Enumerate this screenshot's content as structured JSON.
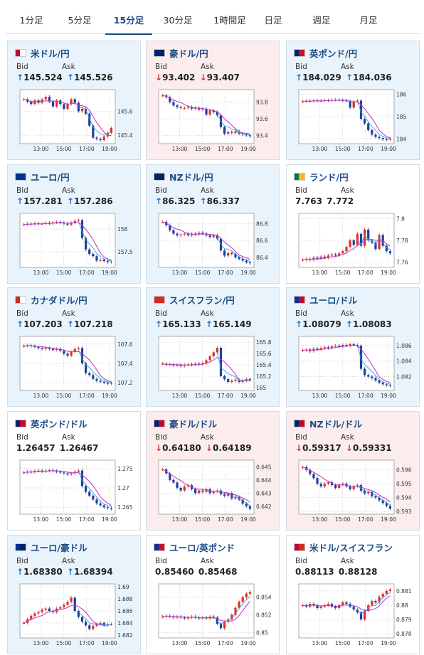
{
  "tabs": [
    {
      "label": "1分足"
    },
    {
      "label": "5分足"
    },
    {
      "label": "15分足",
      "active": true
    },
    {
      "label": "30分足"
    },
    {
      "label": "1時間足"
    },
    {
      "label": "日足"
    },
    {
      "label": "週足"
    },
    {
      "label": "月足"
    }
  ],
  "labels": {
    "bid": "Bid",
    "ask": "Ask"
  },
  "time_ticks": [
    "13:00",
    "15:00",
    "17:00",
    "19:00"
  ],
  "colors": {
    "accent": "#1b4b87",
    "up_arrow": "#2a6fb8",
    "down_arrow": "#d9302f",
    "up_bg": "#e9f3fb",
    "down_bg": "#fbeded",
    "bull_candle": "#d9302f",
    "bear_candle": "#1e3f9c",
    "ma_line": "#c040c8",
    "ma_line2": "#3aa0d8"
  },
  "cards": [
    {
      "name": "米ドル/円",
      "flag": "us-flag",
      "trend": "up",
      "bid": "145.524",
      "ask": "145.526",
      "arrow": "up-arrow",
      "y_ticks": [
        "145.6",
        "145.4"
      ],
      "ymin": 145.33,
      "ymax": 145.78,
      "tick_values": [
        145.6,
        145.4
      ],
      "closes": [
        145.7,
        145.68,
        145.66,
        145.69,
        145.67,
        145.7,
        145.72,
        145.68,
        145.64,
        145.69,
        145.66,
        145.62,
        145.66,
        145.7,
        145.67,
        145.6,
        145.62,
        145.58,
        145.48,
        145.38,
        145.37,
        145.36,
        145.39,
        145.42,
        145.46
      ]
    },
    {
      "name": "豪ドル/円",
      "flag": "au-flag",
      "trend": "down",
      "bid": "93.402",
      "ask": "93.407",
      "arrow": "down-arrow",
      "y_ticks": [
        "93.8",
        "93.6",
        "93.4"
      ],
      "ymin": 93.3,
      "ymax": 93.95,
      "tick_values": [
        93.8,
        93.6,
        93.4
      ],
      "closes": [
        93.88,
        93.86,
        93.8,
        93.76,
        93.74,
        93.73,
        93.73,
        93.74,
        93.72,
        93.73,
        93.71,
        93.72,
        93.65,
        93.7,
        93.68,
        93.64,
        93.5,
        93.42,
        93.44,
        93.43,
        93.45,
        93.42,
        93.41,
        93.4,
        93.39
      ]
    },
    {
      "name": "英ポンド/円",
      "flag": "gb-flag",
      "trend": "up",
      "bid": "184.029",
      "ask": "184.036",
      "arrow": "up-arrow",
      "y_ticks": [
        "186",
        "185",
        "184"
      ],
      "ymin": 183.8,
      "ymax": 186.2,
      "tick_values": [
        186,
        185,
        184
      ],
      "closes": [
        185.68,
        185.7,
        185.69,
        185.72,
        185.71,
        185.7,
        185.73,
        185.72,
        185.74,
        185.75,
        185.73,
        185.72,
        185.7,
        185.4,
        185.68,
        185.71,
        184.9,
        184.7,
        184.4,
        184.2,
        184.1,
        184.05,
        184.0,
        183.98,
        184.03
      ]
    },
    {
      "name": "ユーロ/円",
      "flag": "eu-flag",
      "trend": "up",
      "bid": "157.281",
      "ask": "157.286",
      "arrow": "up-arrow",
      "y_ticks": [
        "158",
        "157.5"
      ],
      "ymin": 157.15,
      "ymax": 158.35,
      "tick_values": [
        158,
        157.5
      ],
      "closes": [
        158.1,
        158.12,
        158.11,
        158.13,
        158.12,
        158.12,
        158.14,
        158.13,
        158.15,
        158.16,
        158.14,
        158.12,
        158.1,
        158.14,
        158.18,
        158.2,
        157.8,
        157.55,
        157.45,
        157.4,
        157.3,
        157.32,
        157.29,
        157.27,
        157.28
      ]
    },
    {
      "name": "NZドル/円",
      "flag": "nz-flag",
      "trend": "up",
      "bid": "86.325",
      "ask": "86.337",
      "arrow": "up-arrow",
      "y_ticks": [
        "86.8",
        "86.6",
        "86.4"
      ],
      "ymin": 86.28,
      "ymax": 86.92,
      "tick_values": [
        86.8,
        86.6,
        86.4
      ],
      "closes": [
        86.82,
        86.78,
        86.72,
        86.68,
        86.66,
        86.67,
        86.68,
        86.66,
        86.68,
        86.67,
        86.69,
        86.68,
        86.66,
        86.64,
        86.66,
        86.62,
        86.48,
        86.42,
        86.45,
        86.44,
        86.4,
        86.38,
        86.36,
        86.34,
        86.33
      ]
    },
    {
      "name": "ランド/円",
      "flag": "za-flag",
      "trend": "flat",
      "bid": "7.763",
      "ask": "7.772",
      "arrow": "",
      "y_ticks": [
        "7.8",
        "7.78",
        "7.76"
      ],
      "ymin": 7.755,
      "ymax": 7.805,
      "tick_values": [
        7.8,
        7.78,
        7.76
      ],
      "closes": [
        7.762,
        7.763,
        7.762,
        7.764,
        7.763,
        7.765,
        7.764,
        7.766,
        7.767,
        7.766,
        7.768,
        7.77,
        7.774,
        7.78,
        7.776,
        7.786,
        7.775,
        7.79,
        7.78,
        7.778,
        7.772,
        7.785,
        7.775,
        7.77,
        7.768
      ]
    },
    {
      "name": "カナダドル/円",
      "flag": "ca-flag",
      "trend": "up",
      "bid": "107.203",
      "ask": "107.218",
      "arrow": "up-arrow",
      "y_ticks": [
        "107.6",
        "107.4",
        "107.2"
      ],
      "ymin": 107.12,
      "ymax": 107.68,
      "tick_values": [
        107.6,
        107.4,
        107.2
      ],
      "closes": [
        107.58,
        107.59,
        107.58,
        107.57,
        107.56,
        107.55,
        107.56,
        107.55,
        107.54,
        107.55,
        107.53,
        107.5,
        107.48,
        107.52,
        107.55,
        107.56,
        107.4,
        107.3,
        107.28,
        107.24,
        107.22,
        107.21,
        107.2,
        107.19,
        107.2
      ]
    },
    {
      "name": "スイスフラン/円",
      "flag": "ch-flag",
      "trend": "up",
      "bid": "165.133",
      "ask": "165.149",
      "arrow": "up-arrow",
      "y_ticks": [
        "165.8",
        "165.6",
        "165.4",
        "165.2",
        "165"
      ],
      "ymin": 164.95,
      "ymax": 165.9,
      "tick_values": [
        165.8,
        165.6,
        165.4,
        165.2,
        165.0
      ],
      "closes": [
        165.42,
        165.4,
        165.41,
        165.39,
        165.4,
        165.38,
        165.4,
        165.41,
        165.4,
        165.42,
        165.41,
        165.43,
        165.48,
        165.55,
        165.62,
        165.7,
        165.2,
        165.15,
        165.1,
        165.12,
        165.14,
        165.1,
        165.12,
        165.15,
        165.13
      ]
    },
    {
      "name": "ユーロ/ドル",
      "flag": "euus-flag",
      "trend": "up",
      "bid": "1.08079",
      "ask": "1.08083",
      "arrow": "up-arrow",
      "y_ticks": [
        "1.086",
        "1.084",
        "1.082"
      ],
      "ymin": 1.0802,
      "ymax": 1.0872,
      "tick_values": [
        1.086,
        1.084,
        1.082
      ],
      "closes": [
        1.0854,
        1.0855,
        1.0853,
        1.0856,
        1.0855,
        1.0857,
        1.0858,
        1.0857,
        1.0859,
        1.086,
        1.0859,
        1.0861,
        1.086,
        1.0862,
        1.0861,
        1.086,
        1.083,
        1.0822,
        1.082,
        1.0818,
        1.0815,
        1.0812,
        1.081,
        1.0809,
        1.0808
      ]
    },
    {
      "name": "英ポンド/ドル",
      "flag": "gbus-flag",
      "trend": "flat",
      "bid": "1.26457",
      "ask": "1.26467",
      "arrow": "",
      "y_ticks": [
        "1.275",
        "1.27",
        "1.265"
      ],
      "ymin": 1.2632,
      "ymax": 1.2772,
      "tick_values": [
        1.275,
        1.27,
        1.265
      ],
      "closes": [
        1.274,
        1.2742,
        1.2741,
        1.2744,
        1.2745,
        1.2743,
        1.2745,
        1.2746,
        1.2744,
        1.2742,
        1.274,
        1.2738,
        1.2735,
        1.2738,
        1.2742,
        1.2745,
        1.2705,
        1.269,
        1.268,
        1.267,
        1.266,
        1.2655,
        1.265,
        1.2648,
        1.2646
      ]
    },
    {
      "name": "豪ドル/ドル",
      "flag": "auus-flag",
      "trend": "down",
      "bid": "0.64180",
      "ask": "0.64189",
      "arrow": "down-arrow",
      "y_ticks": [
        "0.645",
        "0.644",
        "0.643",
        "0.642"
      ],
      "ymin": 0.6414,
      "ymax": 0.6455,
      "tick_values": [
        0.645,
        0.644,
        0.643,
        0.642
      ],
      "closes": [
        0.6448,
        0.6445,
        0.644,
        0.6438,
        0.6434,
        0.6432,
        0.6435,
        0.6436,
        0.6433,
        0.643,
        0.6432,
        0.6431,
        0.6433,
        0.643,
        0.6431,
        0.6432,
        0.6429,
        0.6428,
        0.643,
        0.6426,
        0.6427,
        0.6425,
        0.6422,
        0.642,
        0.6418
      ]
    },
    {
      "name": "NZドル/ドル",
      "flag": "nzus-flag",
      "trend": "down",
      "bid": "0.59317",
      "ask": "0.59331",
      "arrow": "down-arrow",
      "y_ticks": [
        "0.596",
        "0.595",
        "0.594",
        "0.593"
      ],
      "ymin": 0.5928,
      "ymax": 0.5967,
      "tick_values": [
        0.596,
        0.595,
        0.594,
        0.593
      ],
      "closes": [
        0.5962,
        0.596,
        0.5957,
        0.5954,
        0.595,
        0.5948,
        0.595,
        0.5951,
        0.5949,
        0.5947,
        0.5949,
        0.595,
        0.5948,
        0.5946,
        0.5948,
        0.5949,
        0.5945,
        0.5943,
        0.5944,
        0.5941,
        0.594,
        0.5938,
        0.5936,
        0.5934,
        0.5932
      ]
    },
    {
      "name": "ユーロ/豪ドル",
      "flag": "euau-flag",
      "trend": "up",
      "bid": "1.68380",
      "ask": "1.68394",
      "arrow": "up-arrow",
      "y_ticks": [
        "1.69",
        "1.688",
        "1.686",
        "1.684",
        "1.682"
      ],
      "ymin": 1.6815,
      "ymax": 1.6905,
      "tick_values": [
        1.69,
        1.688,
        1.686,
        1.684,
        1.682
      ],
      "closes": [
        1.684,
        1.6846,
        1.6852,
        1.6856,
        1.6858,
        1.6862,
        1.6864,
        1.686,
        1.6858,
        1.6864,
        1.6866,
        1.687,
        1.6875,
        1.6882,
        1.686,
        1.685,
        1.6842,
        1.6836,
        1.683,
        1.6835,
        1.6838,
        1.684,
        1.6836,
        1.6838,
        1.6838
      ]
    },
    {
      "name": "ユーロ/英ポンド",
      "flag": "eugb-flag",
      "trend": "flat",
      "bid": "0.85460",
      "ask": "0.85468",
      "arrow": "",
      "y_ticks": [
        "0.854",
        "0.852",
        "0.85"
      ],
      "ymin": 0.8494,
      "ymax": 0.8555,
      "tick_values": [
        0.854,
        0.852,
        0.85
      ],
      "closes": [
        0.8518,
        0.8519,
        0.8518,
        0.8517,
        0.8518,
        0.8517,
        0.8516,
        0.8517,
        0.8518,
        0.8517,
        0.8516,
        0.8517,
        0.8516,
        0.8518,
        0.8517,
        0.851,
        0.8505,
        0.8512,
        0.8515,
        0.852,
        0.8528,
        0.8535,
        0.854,
        0.8544,
        0.8546
      ]
    },
    {
      "name": "米ドル/スイスフラン",
      "flag": "usch-flag",
      "trend": "flat",
      "bid": "0.88113",
      "ask": "0.88128",
      "arrow": "",
      "y_ticks": [
        "0.881",
        "0.88",
        "0.879",
        "0.878"
      ],
      "ymin": 0.8777,
      "ymax": 0.8815,
      "tick_values": [
        0.881,
        0.88,
        0.879,
        0.878
      ],
      "closes": [
        0.88,
        0.8799,
        0.8801,
        0.88,
        0.8798,
        0.8799,
        0.88,
        0.8801,
        0.8799,
        0.8798,
        0.88,
        0.8802,
        0.8801,
        0.8799,
        0.8797,
        0.8795,
        0.879,
        0.8796,
        0.88,
        0.8803,
        0.8802,
        0.8806,
        0.8808,
        0.881,
        0.8811
      ]
    }
  ]
}
